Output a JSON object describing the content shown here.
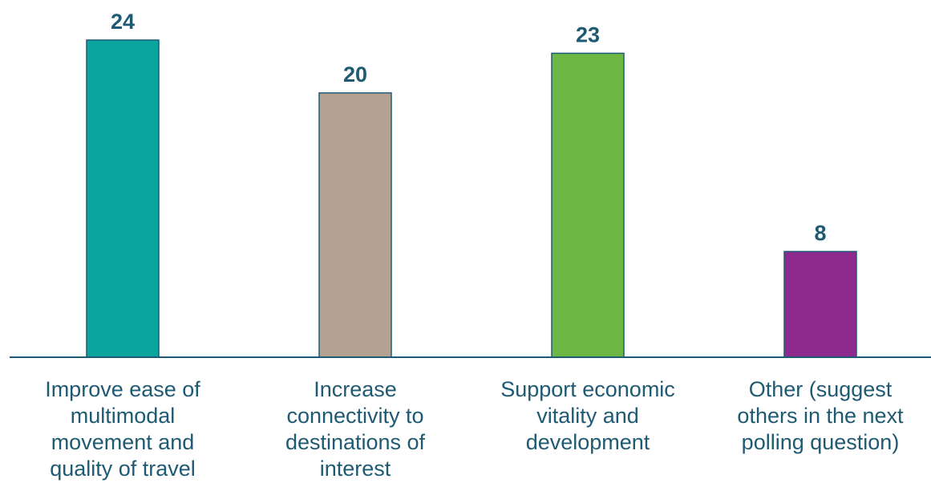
{
  "chart_data": {
    "type": "bar",
    "title": "",
    "xlabel": "",
    "ylabel": "",
    "ylim": [
      0,
      26
    ],
    "grid": false,
    "legend": "none",
    "categories": [
      "Improve ease of multimodal movement and quality of travel",
      "Increase connectivity to destinations of interest",
      "Support economic vitality and development",
      "Other (suggest others in the next polling question)"
    ],
    "values": [
      24,
      20,
      23,
      8
    ],
    "value_labels": [
      "24",
      "20",
      "23",
      "8"
    ],
    "colors": [
      "#0aa59e",
      "#b5a192",
      "#6db844",
      "#8e2a8e"
    ],
    "bar_edge_color": "#1f5a73",
    "label_color": "#1f5a73",
    "axis_color": "#1f5a73"
  }
}
